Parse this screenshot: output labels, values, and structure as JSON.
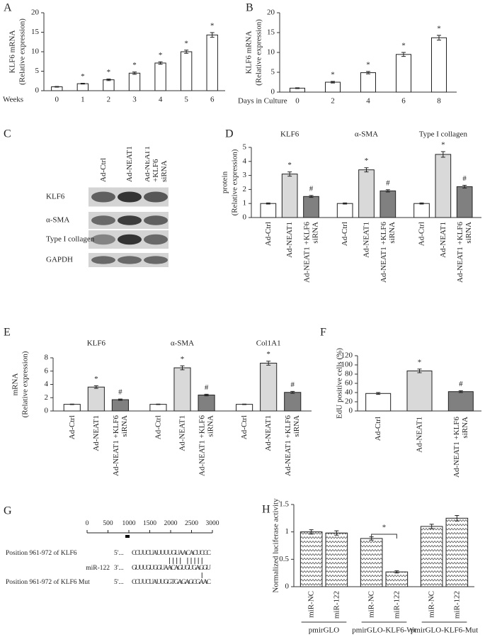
{
  "chart_data": [
    {
      "label": "A",
      "type": "bar",
      "ylabel_lines": [
        "KLF6 mRNA",
        "(Relative expression)"
      ],
      "xlabel": "Weeks",
      "categories": [
        "0",
        "1",
        "2",
        "3",
        "4",
        "5",
        "6"
      ],
      "values": [
        1,
        1.8,
        2.8,
        4.5,
        7.1,
        10,
        14.3
      ],
      "errors": [
        0.1,
        0.1,
        0.2,
        0.3,
        0.3,
        0.4,
        0.6
      ],
      "markers": [
        null,
        "*",
        "*",
        "*",
        "*",
        "*",
        "*"
      ],
      "color": "#ffffff",
      "ylim": [
        0,
        20
      ],
      "yticks": [
        0,
        5,
        10,
        15,
        20
      ]
    },
    {
      "label": "B",
      "type": "bar",
      "ylabel_lines": [
        "KLF6 mRNA",
        "(Relative expression)"
      ],
      "xlabel": "Days in Culture",
      "categories": [
        "0",
        "2",
        "4",
        "6",
        "8"
      ],
      "values": [
        1,
        2.5,
        4.9,
        9.5,
        13.7
      ],
      "errors": [
        0.1,
        0.2,
        0.3,
        0.5,
        0.6
      ],
      "markers": [
        null,
        "*",
        "*",
        "*",
        "*"
      ],
      "color": "#ffffff",
      "ylim": [
        0,
        20
      ],
      "yticks": [
        0,
        5,
        10,
        15,
        20
      ]
    },
    {
      "label": "D",
      "type": "grouped_bar",
      "ylabel_lines": [
        "protein",
        "(Relative expression)"
      ],
      "categories": [
        "KLF6",
        "α-SMA",
        "Type I collagen"
      ],
      "series": [
        {
          "name": "Ad-Ctrl",
          "color": "#ffffff",
          "values": [
            1,
            1,
            1
          ],
          "errors": [
            0.04,
            0.04,
            0.04
          ],
          "marker": null
        },
        {
          "name": "Ad-NEAT1",
          "color": "#d9d9d9",
          "values": [
            3.1,
            3.4,
            4.5
          ],
          "errors": [
            0.15,
            0.15,
            0.2
          ],
          "marker": "*"
        },
        {
          "name": "Ad-NEAT1 +KLF6 siRNA",
          "color": "#808080",
          "values": [
            1.5,
            1.9,
            2.2
          ],
          "errors": [
            0.07,
            0.08,
            0.1
          ],
          "marker": "#"
        }
      ],
      "ylim": [
        0,
        5
      ],
      "yticks": [
        0,
        1,
        2,
        3,
        4,
        5
      ]
    },
    {
      "label": "E",
      "type": "grouped_bar",
      "ylabel_lines": [
        "mRNA",
        "(Relative expression)"
      ],
      "categories": [
        "KLF6",
        "α-SMA",
        "Col1A1"
      ],
      "series": [
        {
          "name": "Ad-Ctrl",
          "color": "#ffffff",
          "values": [
            1,
            1,
            1
          ],
          "errors": [
            0.04,
            0.04,
            0.04
          ],
          "marker": null
        },
        {
          "name": "Ad-NEAT1",
          "color": "#d9d9d9",
          "values": [
            3.6,
            6.5,
            7.2
          ],
          "errors": [
            0.2,
            0.3,
            0.3
          ],
          "marker": "*"
        },
        {
          "name": "Ad-NEAT1 +KLF6 siRNA",
          "color": "#808080",
          "values": [
            1.7,
            2.4,
            2.8
          ],
          "errors": [
            0.1,
            0.12,
            0.15
          ],
          "marker": "#"
        }
      ],
      "ylim": [
        0,
        8
      ],
      "yticks": [
        0,
        2,
        4,
        6,
        8
      ]
    },
    {
      "label": "F",
      "type": "bar",
      "ylabel_lines": [
        "EdU positive cells (%)"
      ],
      "categories": [
        "Ad-Ctrl",
        "Ad-NEAT1",
        "Ad-NEAT1 +KLF6 siRNA"
      ],
      "values": [
        38,
        87,
        42
      ],
      "errors": [
        2,
        4,
        2
      ],
      "markers": [
        null,
        "*",
        "#"
      ],
      "colors": [
        "#ffffff",
        "#d9d9d9",
        "#808080"
      ],
      "ylim": [
        0,
        120
      ],
      "yticks": [
        0,
        20,
        40,
        60,
        80,
        100,
        120
      ]
    },
    {
      "label": "H",
      "type": "grouped_bar",
      "ylabel_lines": [
        "Normalized luciferase activity"
      ],
      "categories": [
        "pmirGLO",
        "pmirGLO-KLF6-Wt",
        "pmirGLO-KLF6-Mut"
      ],
      "series": [
        {
          "name": "miR-NC",
          "color": "#ffffff",
          "pattern": "zigzag",
          "values": [
            1,
            0.88,
            1.1
          ],
          "errors": [
            0.04,
            0.03,
            0.04
          ],
          "marker": null
        },
        {
          "name": "miR-122",
          "color": "#ffffff",
          "pattern": "zigzag",
          "values": [
            0.98,
            0.27,
            1.25
          ],
          "errors": [
            0.04,
            0.02,
            0.05
          ],
          "marker": null
        }
      ],
      "significance": "*",
      "ylim": [
        0,
        1.5
      ],
      "yticks": [
        0,
        0.5,
        1,
        1.5
      ]
    }
  ],
  "blot": {
    "label": "C",
    "columns": [
      "Ad-Ctrl",
      "Ad-NEAT1",
      "Ad-NEAT1 +KLF6 siRNA"
    ],
    "rows": [
      "KLF6",
      "α-SMA",
      "Type I collagen",
      "GAPDH"
    ]
  },
  "sequence": {
    "label": "G",
    "scale_ticks": [
      0,
      500,
      1000,
      1500,
      2000,
      2500,
      3000
    ],
    "site": [
      961,
      972
    ],
    "rows": [
      {
        "name": "Position 961-972 of KLF6",
        "end": "5'...",
        "sequence": "CCUUCUAUUUUGUAACACUCCC"
      },
      {
        "name": "miR-122",
        "end": "3'...",
        "sequence": "GUUUGUGGUAACAGUGUGAGGU"
      },
      {
        "name": "Position 961-972 of KLF6 Mut",
        "end": "5'...",
        "sequence": "CCUUCUAUUGGTGAGAGCGAAC"
      }
    ]
  }
}
